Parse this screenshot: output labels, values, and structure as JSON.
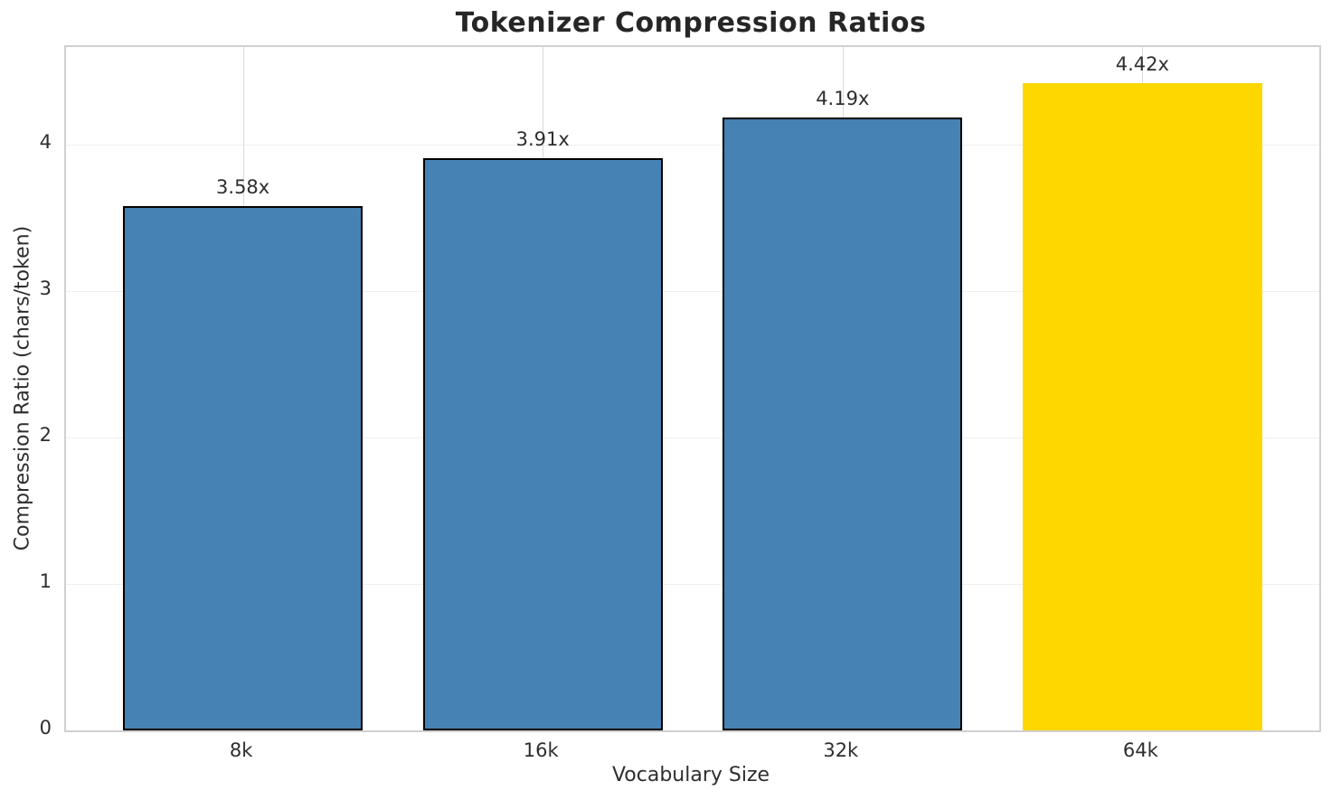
{
  "chart_data": {
    "type": "bar",
    "title": "Tokenizer Compression Ratios",
    "xlabel": "Vocabulary Size",
    "ylabel": "Compression Ratio (chars/token)",
    "categories": [
      "8k",
      "16k",
      "32k",
      "64k"
    ],
    "values": [
      3.58,
      3.91,
      4.19,
      4.42
    ],
    "bar_labels": [
      "3.58x",
      "3.91x",
      "4.19x",
      "4.42x"
    ],
    "yticks": [
      0,
      1,
      2,
      3,
      4
    ],
    "ylim": [
      0,
      4.67
    ],
    "grid": "on",
    "legend_position": "none",
    "bar_colors": [
      "#4682B4",
      "#4682B4",
      "#4682B4",
      "#FFD700"
    ],
    "bar_edge_colors": [
      "#000000",
      "#000000",
      "#000000",
      "none"
    ],
    "highlight_index": 3
  },
  "colors": {
    "bar_blue": "#4682B4",
    "bar_gold": "#FFD700",
    "bar_edge": "#000000",
    "text": "#2e2e2e",
    "spine": "#d0d0d0",
    "grid_horizontal": "#efefef",
    "grid_vertical": "#d9d9d9",
    "background": "#ffffff"
  }
}
